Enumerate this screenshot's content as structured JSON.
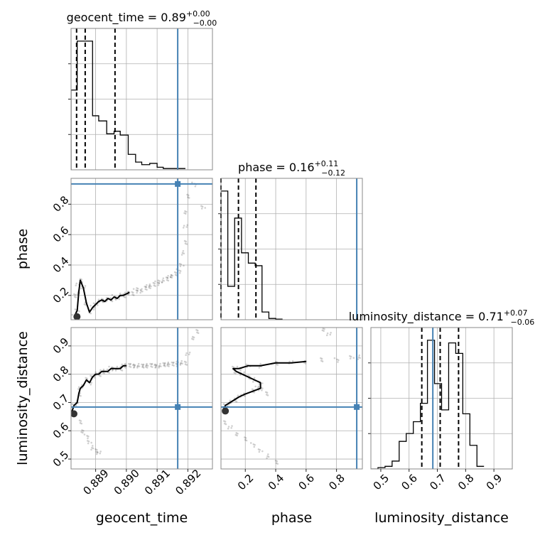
{
  "chart_data": {
    "type": "corner",
    "parameters": [
      "geocent_time",
      "phase",
      "luminosity_distance"
    ],
    "titles": [
      {
        "param": "geocent_time",
        "text": "geocent_time = 0.89",
        "sup": "+0.00",
        "sub": "−0.00"
      },
      {
        "param": "phase",
        "text": "phase = 0.16",
        "sup": "+0.11",
        "sub": "−0.12"
      },
      {
        "param": "luminosity_distance",
        "text": "luminosity_distance = 0.71",
        "sup": "+0.07",
        "sub": "−0.06"
      }
    ],
    "ranges": {
      "geocent_time": [
        0.8882,
        0.8928
      ],
      "phase": [
        0.04,
        0.97
      ],
      "luminosity_distance": [
        0.465,
        0.965
      ]
    },
    "ticks": {
      "geocent_time": [
        "0.889",
        "0.890",
        "0.891",
        "0.892"
      ],
      "phase": [
        "0.2",
        "0.4",
        "0.6",
        "0.8"
      ],
      "luminosity_distance": [
        "0.5",
        "0.6",
        "0.7",
        "0.8",
        "0.9"
      ]
    },
    "truths": {
      "geocent_time": 0.89167,
      "phase": 0.933,
      "luminosity_distance": 0.684
    },
    "quantiles": {
      "geocent_time": [
        0.88838,
        0.88866,
        0.88963
      ],
      "phase": [
        0.04,
        0.155,
        0.27
      ],
      "luminosity_distance": [
        0.645,
        0.71,
        0.775
      ]
    },
    "histograms": {
      "geocent_time": {
        "edges": [
          0.8882,
          0.8884,
          0.88864,
          0.8889,
          0.8891,
          0.88936,
          0.8896,
          0.8898,
          0.89006,
          0.8903,
          0.8905,
          0.89076,
          0.891,
          0.8912,
          0.89146,
          0.8917,
          0.89192
        ],
        "values": [
          0.62,
          1.0,
          1.0,
          0.42,
          0.38,
          0.28,
          0.3,
          0.27,
          0.12,
          0.06,
          0.04,
          0.05,
          0.02,
          0.01,
          0.01,
          0.01
        ]
      },
      "phase": {
        "edges": [
          0.04,
          0.085,
          0.13,
          0.175,
          0.22,
          0.265,
          0.31,
          0.355,
          0.4,
          0.445
        ],
        "values": [
          1.0,
          0.26,
          0.79,
          0.52,
          0.44,
          0.42,
          0.06,
          0.01,
          0.005
        ]
      },
      "luminosity_distance": {
        "edges": [
          0.465,
          0.49,
          0.515,
          0.54,
          0.565,
          0.59,
          0.615,
          0.64,
          0.665,
          0.69,
          0.715,
          0.74,
          0.765,
          0.79,
          0.815,
          0.84,
          0.865
        ],
        "values": [
          0.0,
          0.01,
          0.02,
          0.06,
          0.21,
          0.27,
          0.36,
          0.5,
          0.98,
          0.65,
          0.45,
          0.96,
          0.88,
          0.42,
          0.18,
          0.02
        ]
      }
    },
    "samples": {
      "geocent_time_vs_phase": [
        [
          0.8883,
          0.06
        ],
        [
          0.8884,
          0.1
        ],
        [
          0.88845,
          0.22
        ],
        [
          0.8885,
          0.3
        ],
        [
          0.8886,
          0.25
        ],
        [
          0.8887,
          0.15
        ],
        [
          0.8888,
          0.09
        ],
        [
          0.8889,
          0.12
        ],
        [
          0.889,
          0.14
        ],
        [
          0.8891,
          0.16
        ],
        [
          0.8892,
          0.17
        ],
        [
          0.8893,
          0.16
        ],
        [
          0.8894,
          0.18
        ],
        [
          0.8895,
          0.17
        ],
        [
          0.8896,
          0.19
        ],
        [
          0.8897,
          0.18
        ],
        [
          0.8898,
          0.2
        ],
        [
          0.8899,
          0.2
        ],
        [
          0.89,
          0.21
        ],
        [
          0.8901,
          0.22
        ],
        [
          0.8902,
          0.21
        ],
        [
          0.8903,
          0.23
        ],
        [
          0.8904,
          0.24
        ],
        [
          0.8905,
          0.23
        ],
        [
          0.8906,
          0.25
        ],
        [
          0.8907,
          0.26
        ],
        [
          0.8908,
          0.26
        ],
        [
          0.8909,
          0.27
        ],
        [
          0.891,
          0.28
        ],
        [
          0.8911,
          0.29
        ],
        [
          0.8912,
          0.3
        ],
        [
          0.8913,
          0.31
        ],
        [
          0.8914,
          0.32
        ],
        [
          0.8915,
          0.33
        ],
        [
          0.8916,
          0.34
        ],
        [
          0.8917,
          0.36
        ],
        [
          0.8918,
          0.4
        ],
        [
          0.89185,
          0.48
        ],
        [
          0.8919,
          0.55
        ],
        [
          0.89192,
          0.65
        ],
        [
          0.89195,
          0.75
        ],
        [
          0.892,
          0.85
        ],
        [
          0.8922,
          0.93
        ],
        [
          0.8925,
          0.78
        ],
        [
          0.8881,
          0.16
        ],
        [
          0.8883,
          0.2
        ],
        [
          0.88842,
          0.27
        ]
      ],
      "geocent_time_vs_luminosity_distance": [
        [
          0.8882,
          0.66
        ],
        [
          0.8883,
          0.69
        ],
        [
          0.8884,
          0.7
        ],
        [
          0.88845,
          0.73
        ],
        [
          0.8885,
          0.75
        ],
        [
          0.8886,
          0.76
        ],
        [
          0.8887,
          0.78
        ],
        [
          0.8888,
          0.77
        ],
        [
          0.8889,
          0.79
        ],
        [
          0.889,
          0.8
        ],
        [
          0.8891,
          0.8
        ],
        [
          0.8892,
          0.81
        ],
        [
          0.8893,
          0.81
        ],
        [
          0.8894,
          0.81
        ],
        [
          0.8895,
          0.82
        ],
        [
          0.8896,
          0.82
        ],
        [
          0.8897,
          0.82
        ],
        [
          0.8898,
          0.82
        ],
        [
          0.8899,
          0.83
        ],
        [
          0.89,
          0.83
        ],
        [
          0.8901,
          0.83
        ],
        [
          0.8902,
          0.83
        ],
        [
          0.8903,
          0.83
        ],
        [
          0.8904,
          0.83
        ],
        [
          0.8905,
          0.83
        ],
        [
          0.8906,
          0.83
        ],
        [
          0.8907,
          0.83
        ],
        [
          0.8908,
          0.83
        ],
        [
          0.8909,
          0.83
        ],
        [
          0.891,
          0.83
        ],
        [
          0.8911,
          0.83
        ],
        [
          0.8912,
          0.835
        ],
        [
          0.8913,
          0.835
        ],
        [
          0.8914,
          0.835
        ],
        [
          0.8915,
          0.835
        ],
        [
          0.8916,
          0.835
        ],
        [
          0.8917,
          0.84
        ],
        [
          0.8918,
          0.84
        ],
        [
          0.8919,
          0.84
        ],
        [
          0.892,
          0.87
        ],
        [
          0.8922,
          0.93
        ],
        [
          0.8923,
          0.95
        ],
        [
          0.8887,
          0.58
        ],
        [
          0.8888,
          0.56
        ],
        [
          0.8889,
          0.54
        ],
        [
          0.889,
          0.53
        ],
        [
          0.8891,
          0.52
        ],
        [
          0.8886,
          0.6
        ],
        [
          0.8885,
          0.63
        ]
      ],
      "phase_vs_luminosity_distance": [
        [
          0.05,
          0.67
        ],
        [
          0.07,
          0.69
        ],
        [
          0.1,
          0.7
        ],
        [
          0.13,
          0.71
        ],
        [
          0.16,
          0.72
        ],
        [
          0.2,
          0.73
        ],
        [
          0.25,
          0.74
        ],
        [
          0.3,
          0.75
        ],
        [
          0.3,
          0.77
        ],
        [
          0.26,
          0.78
        ],
        [
          0.22,
          0.79
        ],
        [
          0.18,
          0.8
        ],
        [
          0.14,
          0.81
        ],
        [
          0.12,
          0.82
        ],
        [
          0.16,
          0.82
        ],
        [
          0.22,
          0.83
        ],
        [
          0.3,
          0.83
        ],
        [
          0.4,
          0.84
        ],
        [
          0.5,
          0.84
        ],
        [
          0.6,
          0.845
        ],
        [
          0.7,
          0.85
        ],
        [
          0.8,
          0.85
        ],
        [
          0.9,
          0.86
        ],
        [
          0.95,
          0.86
        ],
        [
          0.06,
          0.63
        ],
        [
          0.1,
          0.61
        ],
        [
          0.15,
          0.59
        ],
        [
          0.2,
          0.57
        ],
        [
          0.25,
          0.55
        ],
        [
          0.3,
          0.53
        ],
        [
          0.35,
          0.51
        ],
        [
          0.4,
          0.49
        ],
        [
          0.75,
          0.94
        ],
        [
          0.72,
          0.96
        ],
        [
          0.34,
          0.73
        ],
        [
          0.28,
          0.75
        ]
      ]
    },
    "grid": true
  }
}
